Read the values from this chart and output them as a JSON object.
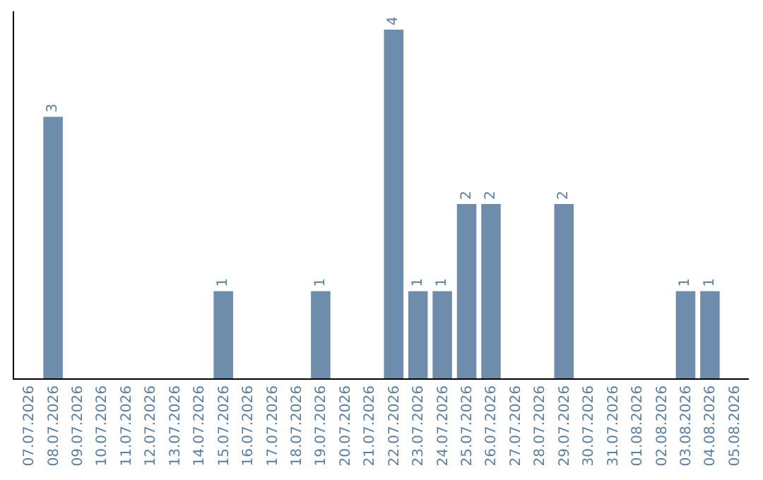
{
  "chart_data": {
    "type": "bar",
    "categories": [
      "07.07.2026",
      "08.07.2026",
      "09.07.2026",
      "10.07.2026",
      "11.07.2026",
      "12.07.2026",
      "13.07.2026",
      "14.07.2026",
      "15.07.2026",
      "16.07.2026",
      "17.07.2026",
      "18.07.2026",
      "19.07.2026",
      "20.07.2026",
      "21.07.2026",
      "22.07.2026",
      "23.07.2026",
      "24.07.2026",
      "25.07.2026",
      "26.07.2026",
      "27.07.2026",
      "28.07.2026",
      "29.07.2026",
      "30.07.2026",
      "31.07.2026",
      "01.08.2026",
      "02.08.2026",
      "03.08.2026",
      "04.08.2026",
      "05.08.2026"
    ],
    "values": [
      0,
      3,
      0,
      0,
      0,
      0,
      0,
      0,
      1,
      0,
      0,
      0,
      1,
      0,
      0,
      4,
      1,
      1,
      2,
      2,
      0,
      0,
      2,
      0,
      0,
      0,
      0,
      1,
      1,
      0
    ],
    "value_labels": [
      null,
      "3",
      null,
      null,
      null,
      null,
      null,
      null,
      "1",
      null,
      null,
      null,
      "1",
      null,
      null,
      "4",
      "1",
      "1",
      "2",
      "2",
      null,
      null,
      "2",
      null,
      null,
      null,
      null,
      "1",
      "1",
      null
    ],
    "color": "#6e8cab",
    "tick_labels": "x"
  }
}
